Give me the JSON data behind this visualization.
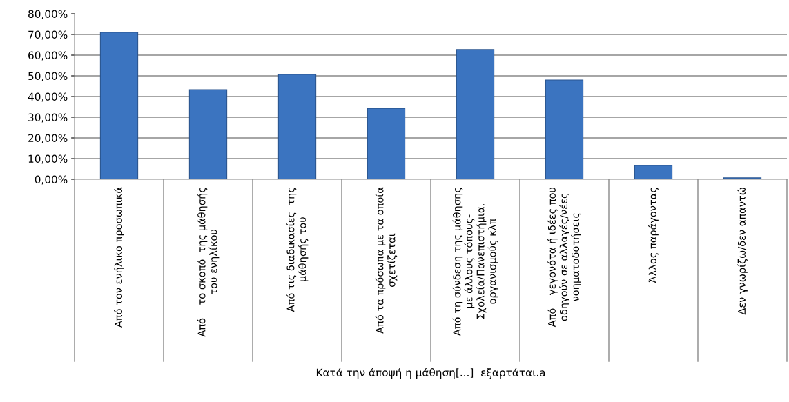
{
  "chart_data": {
    "type": "bar",
    "xlabel": "Κατά την άποψή η μάθηση[...]  εξαρτάται.a",
    "categories": [
      "Από τον ενήλικο προσωπικά",
      "Από    το σκοπό  της μάθησής\nτου ενηλίκου",
      "Από τις διαδικασίες  της\nμάθησής του",
      "Από τα πρόσωπα με τα οποία\nσχετίζεται",
      "Από τη σύνδεση της μάθησης\nμε άλλους τόπους-\nΣχολεία/Πανεπιστήμια,\nοργανισμούς κλπ",
      "Από    γεγονότα ή ιδέες που\nοδηγούν σε αλλαγές/νέες\nνοηματοδοτήσεις",
      "Άλλος παράγοντας",
      "Δεν γνωρίζω/δεν απαντώ"
    ],
    "values": [
      71,
      43.3,
      50.7,
      34.3,
      62.7,
      48,
      6.7,
      0.7
    ],
    "color": "#3b74c0",
    "ylim": [
      0,
      80
    ],
    "yticks": [
      {
        "value": 0,
        "label": "0,00%"
      },
      {
        "value": 10,
        "label": "10,00%"
      },
      {
        "value": 20,
        "label": "20,00%"
      },
      {
        "value": 30,
        "label": "30,00%"
      },
      {
        "value": 40,
        "label": "40,00%"
      },
      {
        "value": 50,
        "label": "50,00%"
      },
      {
        "value": 60,
        "label": "60,00%"
      },
      {
        "value": 70,
        "label": "70,00%"
      },
      {
        "value": 80,
        "label": "80,00%"
      }
    ],
    "grid": "y"
  }
}
